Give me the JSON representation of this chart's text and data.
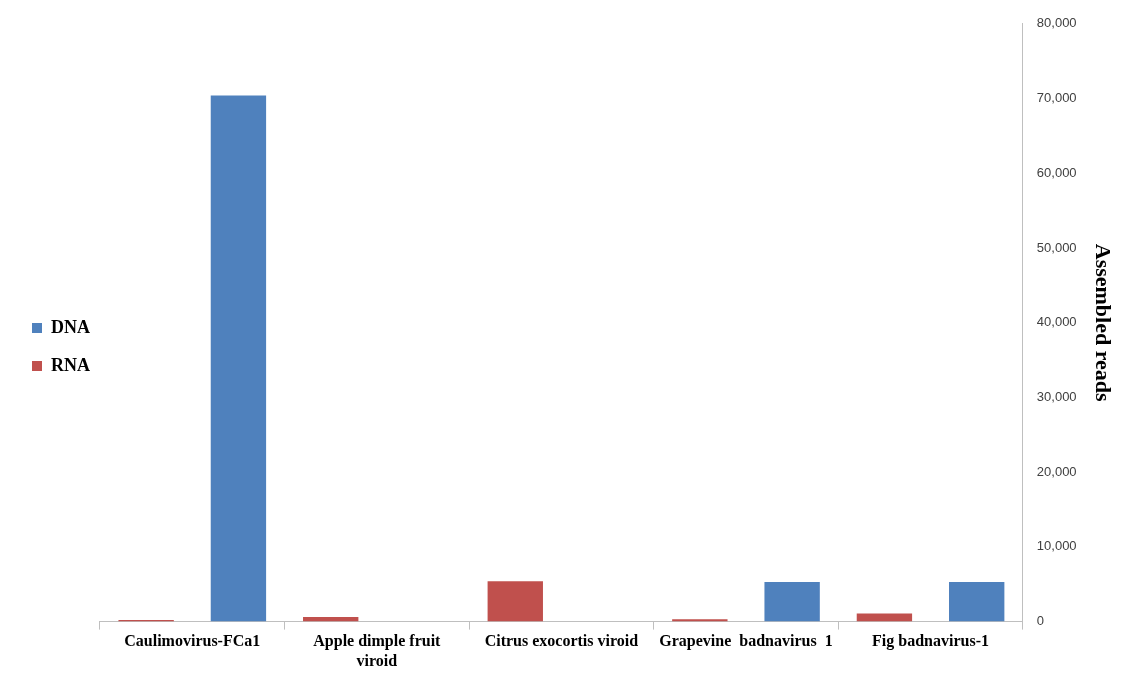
{
  "chart_data": {
    "type": "bar",
    "ylabel": "Assembled reads",
    "categories": [
      "Caulimovirus-FCa1",
      "Apple dimple fruit viroid",
      "Citrus exocortis viroid",
      "Grapevine  badnavirus  1",
      "Fig badnavirus-1"
    ],
    "series": [
      {
        "name": "RNA",
        "color": "#c0504d",
        "values": [
          200,
          600,
          5400,
          300,
          1100
        ]
      },
      {
        "name": "DNA",
        "color": "#4f81bd",
        "values": [
          70400,
          0,
          0,
          5300,
          5300
        ]
      }
    ],
    "ylim": [
      0,
      80000
    ],
    "yticks": [
      {
        "value": 0,
        "label": "0"
      },
      {
        "value": 10000,
        "label": "10,000"
      },
      {
        "value": 20000,
        "label": "20,000"
      },
      {
        "value": 30000,
        "label": "30,000"
      },
      {
        "value": 40000,
        "label": "40,000"
      },
      {
        "value": 50000,
        "label": "50,000"
      },
      {
        "value": 60000,
        "label": "60,000"
      },
      {
        "value": 70000,
        "label": "70,000"
      },
      {
        "value": 80000,
        "label": "80,000"
      }
    ],
    "grid": false,
    "legend": "left"
  }
}
